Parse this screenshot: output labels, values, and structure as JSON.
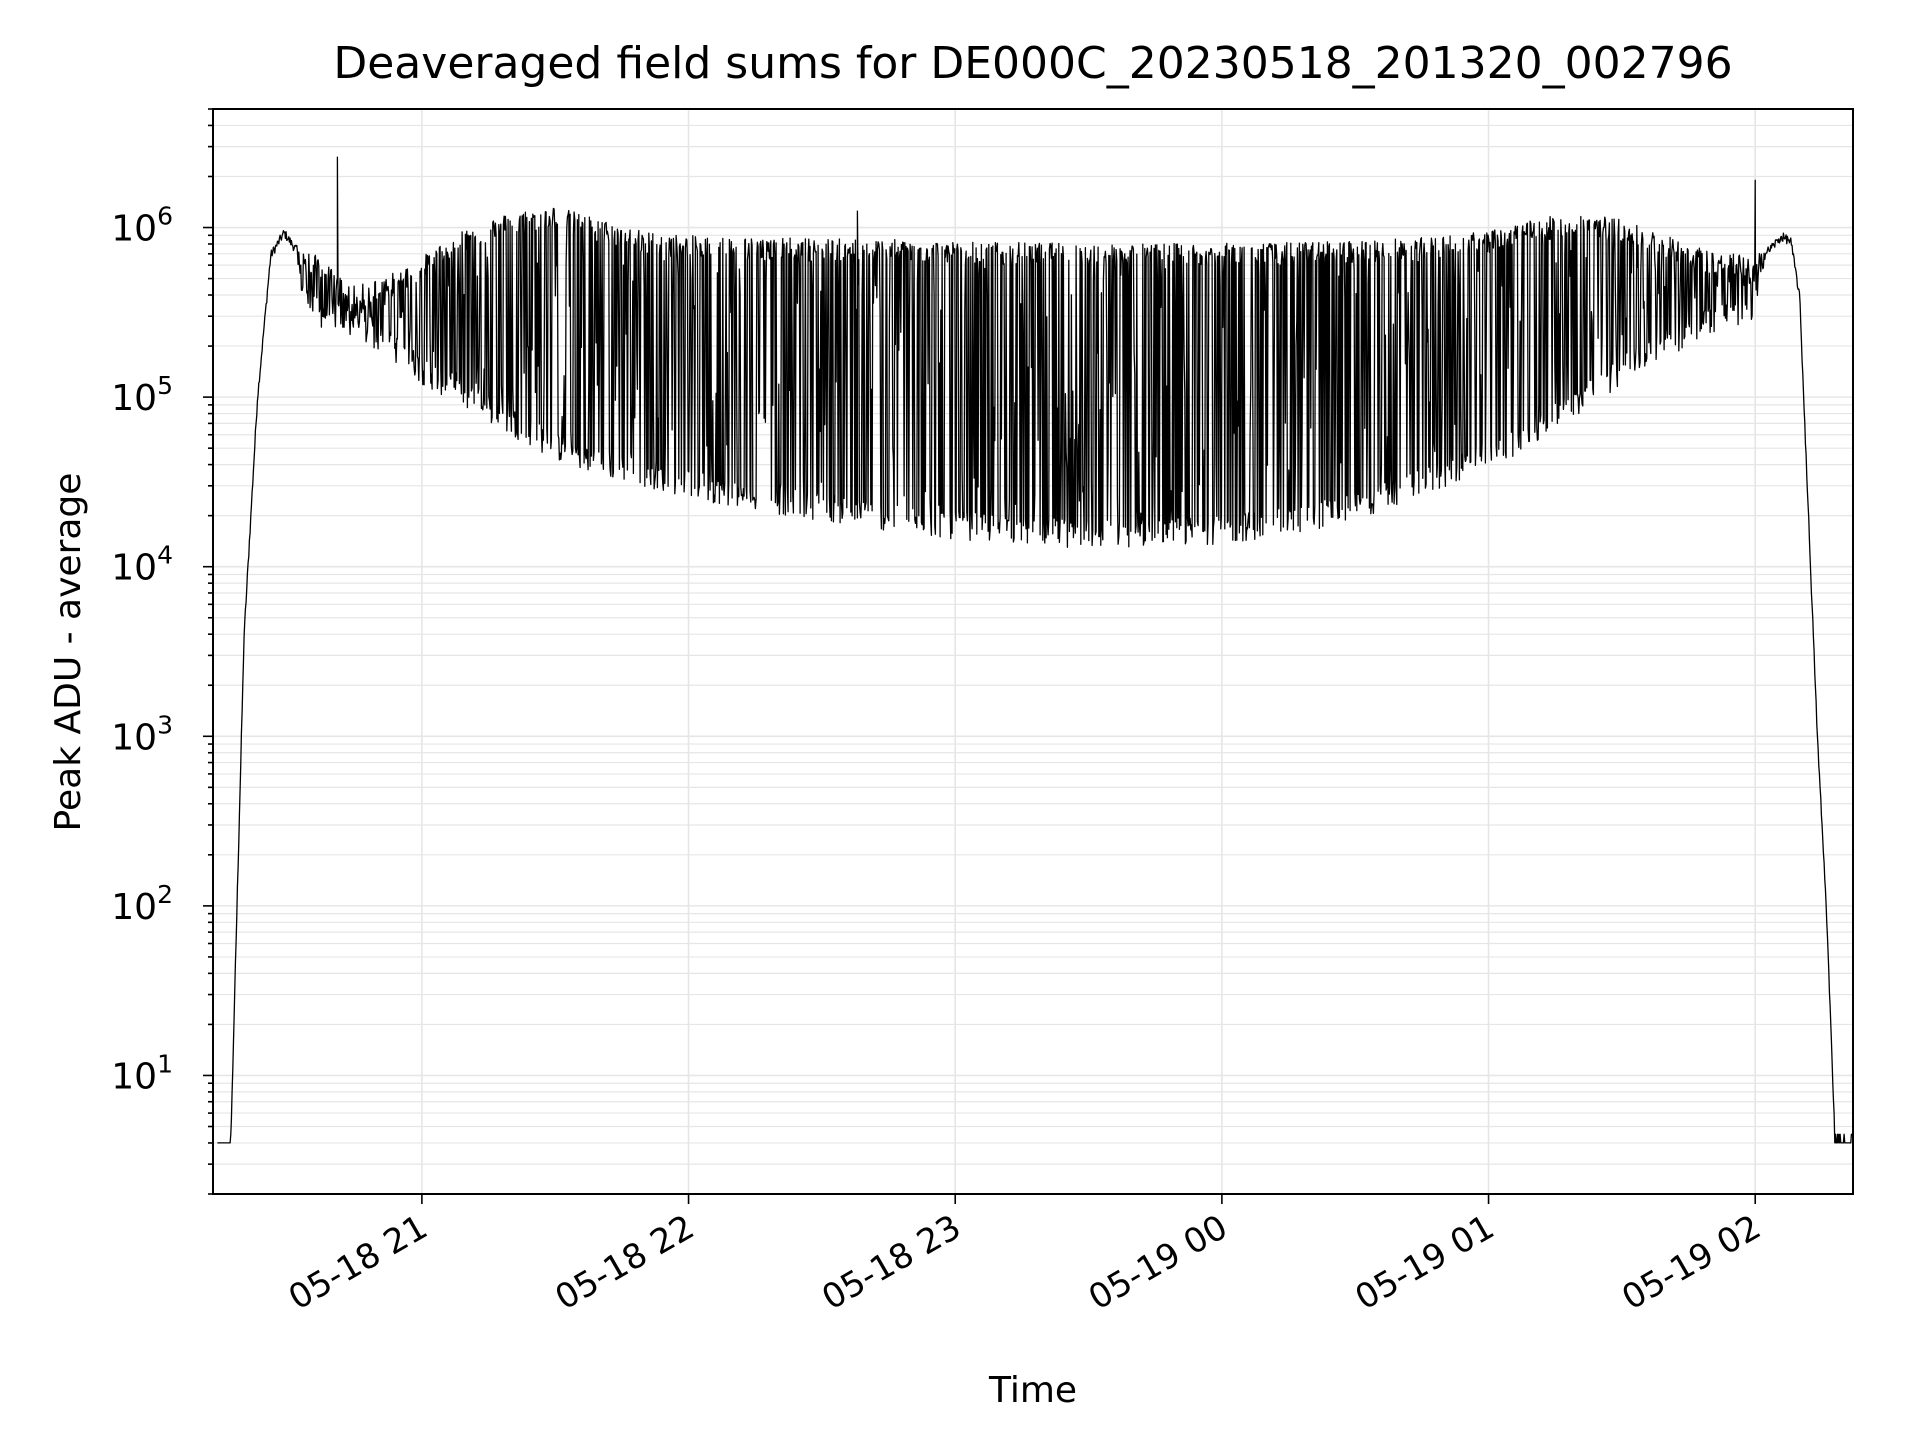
{
  "chart_data": {
    "type": "line",
    "title": "Deaveraged field sums for DE000C_20230518_201320_002796",
    "xlabel": "Time",
    "ylabel": "Peak ADU - average",
    "yscale": "log",
    "ylim": [
      2,
      5000000
    ],
    "y_major_ticks": [
      {
        "value": 10,
        "base": "10",
        "exp": "1"
      },
      {
        "value": 100,
        "base": "10",
        "exp": "2"
      },
      {
        "value": 1000,
        "base": "10",
        "exp": "3"
      },
      {
        "value": 10000,
        "base": "10",
        "exp": "4"
      },
      {
        "value": 100000,
        "base": "10",
        "exp": "5"
      },
      {
        "value": 1000000,
        "base": "10",
        "exp": "6"
      }
    ],
    "xlim": [
      "2023-05-18 20:13",
      "2023-05-19 02:22"
    ],
    "x_ticks": [
      {
        "time": "2023-05-18 21:00",
        "label": "05-18 21"
      },
      {
        "time": "2023-05-18 22:00",
        "label": "05-18 22"
      },
      {
        "time": "2023-05-18 23:00",
        "label": "05-18 23"
      },
      {
        "time": "2023-05-19 00:00",
        "label": "05-19 00"
      },
      {
        "time": "2023-05-19 01:00",
        "label": "05-19 01"
      },
      {
        "time": "2023-05-19 02:00",
        "label": "05-19 02"
      }
    ],
    "grid": true,
    "line_color": "#000000",
    "grid_color": "#e6e6e6",
    "series": [
      {
        "x": [
          "2023-05-18 20:14",
          "2023-05-18 20:17",
          "2023-05-18 20:20",
          "2023-05-18 20:23",
          "2023-05-18 20:26",
          "2023-05-18 20:29",
          "2023-05-18 20:31",
          "2023-05-18 20:34",
          "2023-05-18 20:37",
          "2023-05-18 20:40",
          "2023-05-18 20:42",
          "2023-05-18 20:45",
          "2023-05-18 20:50",
          "2023-05-18 20:55",
          "2023-05-18 21:00",
          "2023-05-18 21:10",
          "2023-05-18 21:20",
          "2023-05-18 21:30",
          "2023-05-18 21:40",
          "2023-05-18 21:50",
          "2023-05-18 22:00",
          "2023-05-18 22:15",
          "2023-05-18 22:30",
          "2023-05-18 22:45",
          "2023-05-18 23:00",
          "2023-05-18 23:15",
          "2023-05-18 23:30",
          "2023-05-18 23:45",
          "2023-05-19 00:00",
          "2023-05-19 00:15",
          "2023-05-19 00:30",
          "2023-05-19 00:45",
          "2023-05-19 01:00",
          "2023-05-19 01:10",
          "2023-05-19 01:20",
          "2023-05-19 01:30",
          "2023-05-19 01:40",
          "2023-05-19 01:50",
          "2023-05-19 02:00",
          "2023-05-19 02:03",
          "2023-05-19 02:06",
          "2023-05-19 02:08",
          "2023-05-19 02:10",
          "2023-05-19 02:12",
          "2023-05-19 02:14",
          "2023-05-19 02:16",
          "2023-05-19 02:18",
          "2023-05-19 02:20",
          "2023-05-19 02:22"
        ],
        "peak_upper": [
          4,
          4,
          4000,
          100000,
          700000,
          950000,
          800000,
          650000,
          600000,
          500000,
          450000,
          400000,
          450000,
          500000,
          600000,
          900000,
          1100000,
          1200000,
          1000000,
          850000,
          800000,
          780000,
          770000,
          760000,
          740000,
          730000,
          720000,
          720000,
          720000,
          730000,
          750000,
          780000,
          850000,
          1000000,
          1100000,
          1000000,
          800000,
          650000,
          600000,
          750000,
          900000,
          850000,
          400000,
          20000,
          1000,
          100,
          4,
          4,
          4
        ],
        "trough_lower": [
          4,
          4,
          4000,
          100000,
          700000,
          950000,
          800000,
          350000,
          300000,
          300000,
          280000,
          250000,
          220000,
          180000,
          140000,
          100000,
          70000,
          50000,
          40000,
          35000,
          30000,
          25000,
          22000,
          19000,
          17000,
          16000,
          15000,
          15500,
          16000,
          18000,
          22000,
          30000,
          45000,
          60000,
          90000,
          140000,
          200000,
          280000,
          330000,
          750000,
          900000,
          850000,
          400000,
          20000,
          1000,
          100,
          4,
          4,
          4
        ],
        "spikes": [
          {
            "x": "2023-05-18 20:41",
            "y": 2600000
          },
          {
            "x": "2023-05-18 22:38",
            "y": 1250000
          },
          {
            "x": "2023-05-19 02:00",
            "y": 1900000
          }
        ]
      }
    ]
  }
}
